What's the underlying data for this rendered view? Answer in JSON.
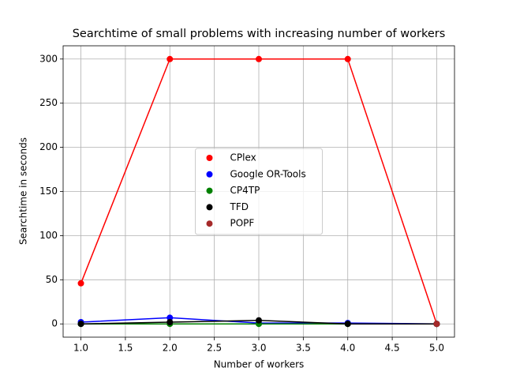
{
  "chart_data": {
    "type": "line",
    "title": "Searchtime of small problems with increasing number of workers",
    "xlabel": "Number of workers",
    "ylabel": "Searchtime in seconds",
    "x": [
      1,
      2,
      3,
      4,
      5
    ],
    "series": [
      {
        "name": "CPlex",
        "color": "#ff0000",
        "values": [
          46,
          300,
          300,
          300,
          0
        ]
      },
      {
        "name": "Google OR-Tools",
        "color": "#0000ff",
        "values": [
          2,
          7,
          1,
          1,
          0
        ]
      },
      {
        "name": "CP4TP",
        "color": "#008000",
        "values": [
          0,
          0,
          0,
          0,
          0
        ]
      },
      {
        "name": "TFD",
        "color": "#000000",
        "values": [
          0,
          2,
          4,
          0,
          0
        ]
      },
      {
        "name": "POPF",
        "color": "#a52a2a",
        "values": [
          null,
          null,
          null,
          null,
          0
        ]
      }
    ],
    "xlim": [
      0.8,
      5.2
    ],
    "ylim": [
      -15,
      315
    ],
    "xticks": [
      {
        "value": 1,
        "label": "1.0"
      },
      {
        "value": 1.5,
        "label": "1.5"
      },
      {
        "value": 2,
        "label": "2.0"
      },
      {
        "value": 2.5,
        "label": "2.5"
      },
      {
        "value": 3,
        "label": "3.0"
      },
      {
        "value": 3.5,
        "label": "3.5"
      },
      {
        "value": 4,
        "label": "4.0"
      },
      {
        "value": 4.5,
        "label": "4.5"
      },
      {
        "value": 5,
        "label": "5.0"
      }
    ],
    "yticks": [
      0,
      50,
      100,
      150,
      200,
      250,
      300
    ],
    "grid": true,
    "legend": "center"
  }
}
